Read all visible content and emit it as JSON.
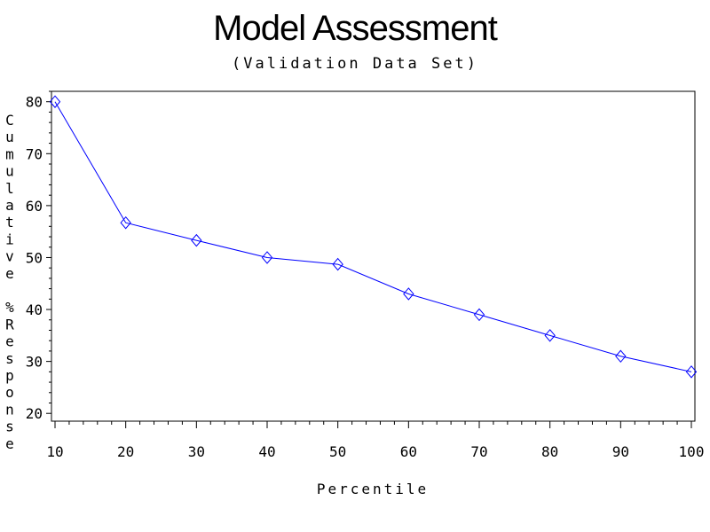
{
  "chart_data": {
    "type": "line",
    "title": "Model Assessment",
    "subtitle": "(Validation Data Set)",
    "xlabel": "Percentile",
    "ylabel": "Cumulative %Response",
    "x": [
      10,
      20,
      30,
      40,
      50,
      60,
      70,
      80,
      90,
      100
    ],
    "series": [
      {
        "values": [
          80,
          56.7,
          53.3,
          50,
          48.7,
          43,
          39,
          35,
          31,
          28
        ]
      }
    ],
    "xlim": [
      10,
      100
    ],
    "ylim": [
      18.5,
      82
    ],
    "xticks": [
      10,
      20,
      30,
      40,
      50,
      60,
      70,
      80,
      90,
      100
    ],
    "yticks": [
      20,
      30,
      40,
      50,
      60,
      70,
      80
    ],
    "marker": "diamond",
    "grid": false,
    "line_color": "#0000ff"
  }
}
